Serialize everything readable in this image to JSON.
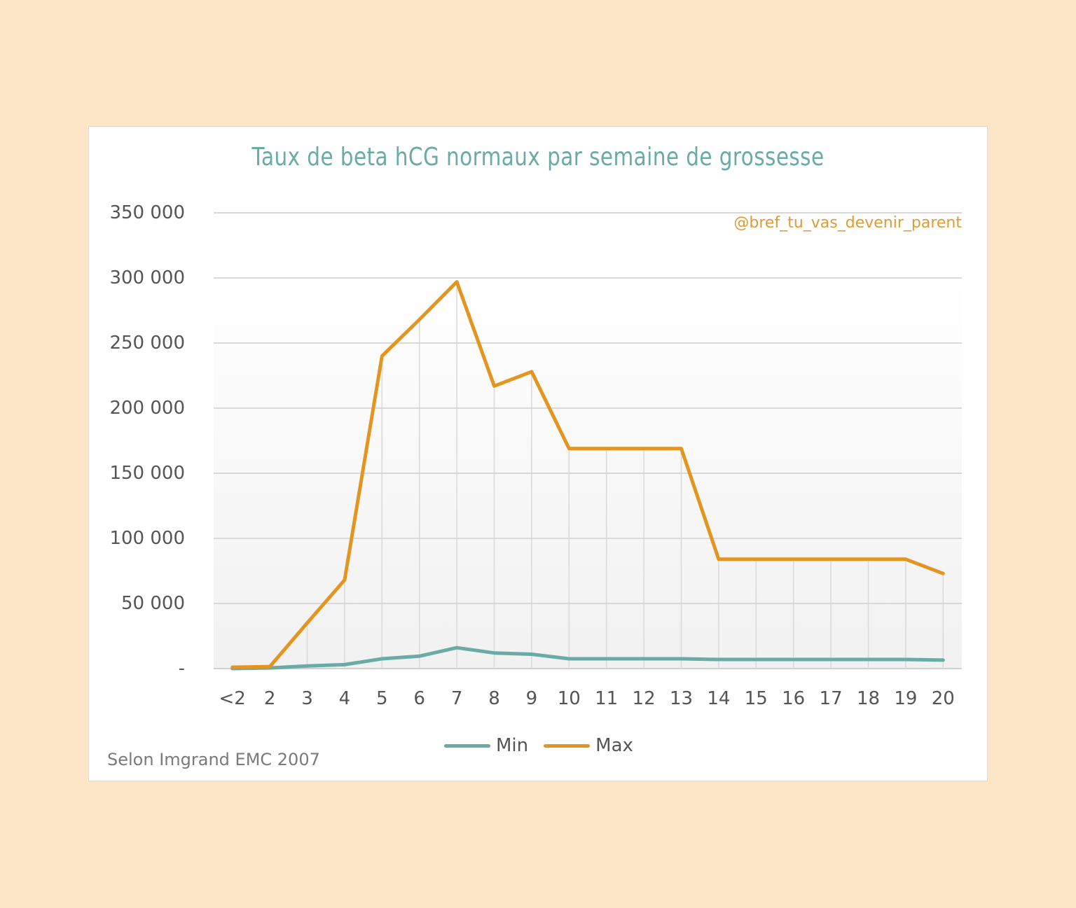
{
  "chart_data": {
    "type": "line",
    "title": "Taux de beta hCG normaux par semaine de grossesse",
    "xlabel": "",
    "ylabel": "",
    "ylim": [
      0,
      350000
    ],
    "yticks": [
      0,
      50000,
      100000,
      150000,
      200000,
      250000,
      300000,
      350000
    ],
    "ytick_labels": [
      "-",
      "50 000",
      "100 000",
      "150 000",
      "200 000",
      "250 000",
      "300 000",
      "350 000"
    ],
    "categories": [
      "<2",
      "2",
      "3",
      "4",
      "5",
      "6",
      "7",
      "8",
      "9",
      "10",
      "11",
      "12",
      "13",
      "14",
      "15",
      "16",
      "17",
      "18",
      "19",
      "20"
    ],
    "series": [
      {
        "name": "Min",
        "color": "#6aaba5",
        "values": [
          0,
          500,
          2000,
          3000,
          7500,
          9500,
          16000,
          12000,
          11000,
          7500,
          7500,
          7500,
          7500,
          7000,
          7000,
          7000,
          7000,
          7000,
          7000,
          6500
        ]
      },
      {
        "name": "Max",
        "color": "#e4951f",
        "values": [
          1000,
          1500,
          35000,
          68000,
          240000,
          268000,
          297000,
          217000,
          228000,
          169000,
          169000,
          169000,
          169000,
          84000,
          84000,
          84000,
          84000,
          84000,
          84000,
          73000
        ]
      }
    ],
    "grid": {
      "horizontal": true,
      "vertical": true
    },
    "legend_position": "bottom",
    "annotations": [
      "@bref_tu_vas_devenir_parent",
      "Selon Imgrand EMC 2007"
    ]
  },
  "header": {
    "title": "Taux de beta hCG normaux par semaine de grossesse"
  },
  "watermark": "@bref_tu_vas_devenir_parent",
  "source": "Selon Imgrand EMC 2007",
  "legend": {
    "items": [
      {
        "label": "Min",
        "color": "#6aaba5"
      },
      {
        "label": "Max",
        "color": "#e4951f"
      }
    ]
  },
  "colors": {
    "background": "#fde6c8",
    "card": "#ffffff",
    "title": "#6aaba5",
    "watermark": "#dd9b35",
    "grid": "#d9d9d9"
  }
}
